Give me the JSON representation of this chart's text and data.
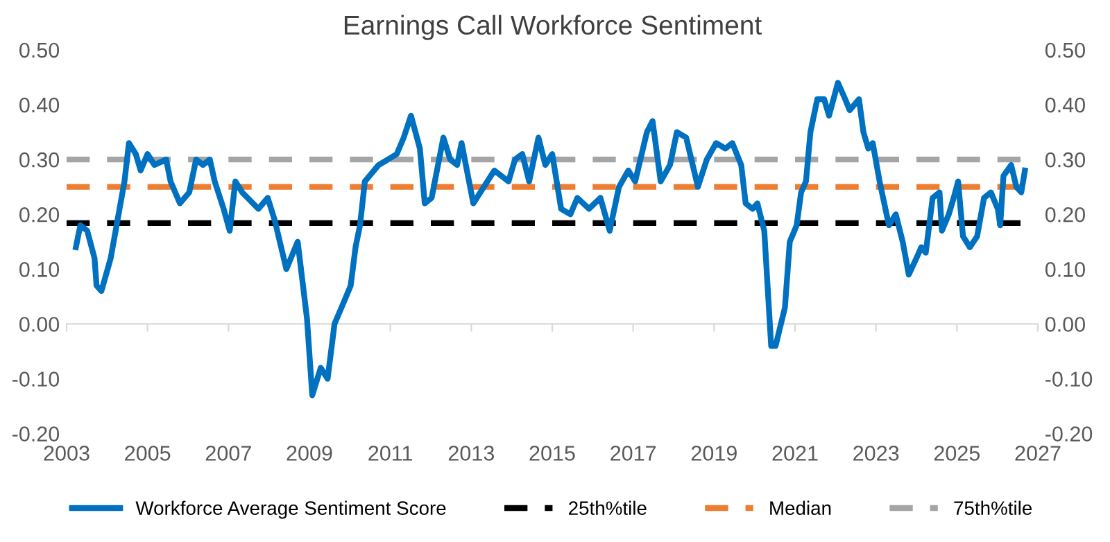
{
  "chart_data": {
    "type": "line",
    "title": "Earnings Call Workforce Sentiment",
    "x": [
      2003.23,
      2003.34,
      2003.51,
      2003.69,
      2003.74,
      2003.86,
      2004.09,
      2004.43,
      2004.54,
      2004.71,
      2004.83,
      2005.0,
      2005.17,
      2005.46,
      2005.57,
      2005.8,
      2006.03,
      2006.2,
      2006.37,
      2006.54,
      2006.66,
      2006.88,
      2007.03,
      2007.17,
      2007.34,
      2007.74,
      2007.97,
      2008.14,
      2008.43,
      2008.71,
      2008.94,
      2009.07,
      2009.28,
      2009.45,
      2009.62,
      2009.85,
      2010.02,
      2010.14,
      2010.25,
      2010.37,
      2010.71,
      2010.94,
      2011.16,
      2011.33,
      2011.51,
      2011.73,
      2011.85,
      2012.02,
      2012.31,
      2012.48,
      2012.65,
      2012.76,
      2013.05,
      2013.57,
      2013.92,
      2014.08,
      2014.26,
      2014.43,
      2014.66,
      2014.83,
      2015.0,
      2015.22,
      2015.45,
      2015.62,
      2015.91,
      2016.19,
      2016.42,
      2016.65,
      2016.88,
      2017.05,
      2017.34,
      2017.48,
      2017.68,
      2017.91,
      2018.08,
      2018.31,
      2018.6,
      2018.82,
      2019.05,
      2019.28,
      2019.45,
      2019.67,
      2019.78,
      2019.95,
      2020.07,
      2020.24,
      2020.41,
      2020.52,
      2020.75,
      2020.87,
      2021.04,
      2021.15,
      2021.27,
      2021.38,
      2021.55,
      2021.72,
      2021.84,
      2022.06,
      2022.24,
      2022.35,
      2022.58,
      2022.69,
      2022.81,
      2022.92,
      2023.09,
      2023.32,
      2023.49,
      2023.66,
      2023.81,
      2024.0,
      2024.12,
      2024.23,
      2024.4,
      2024.57,
      2024.63,
      2024.8,
      2024.92,
      2025.03,
      2025.15,
      2025.32,
      2025.5,
      2025.67,
      2025.84,
      2026.01,
      2026.07,
      2026.15,
      2026.34,
      2026.47,
      2026.59,
      2026.68
    ],
    "series": [
      {
        "name": "Workforce Average Sentiment Score",
        "color": "#0070c0",
        "values": [
          0.14,
          0.18,
          0.17,
          0.12,
          0.07,
          0.06,
          0.12,
          0.26,
          0.33,
          0.31,
          0.28,
          0.31,
          0.29,
          0.3,
          0.26,
          0.22,
          0.24,
          0.3,
          0.29,
          0.3,
          0.26,
          0.21,
          0.17,
          0.26,
          0.24,
          0.21,
          0.23,
          0.19,
          0.1,
          0.15,
          0.01,
          -0.13,
          -0.08,
          -0.1,
          0.0,
          0.04,
          0.07,
          0.14,
          0.18,
          0.26,
          0.29,
          0.3,
          0.31,
          0.34,
          0.38,
          0.32,
          0.22,
          0.23,
          0.34,
          0.3,
          0.29,
          0.33,
          0.22,
          0.28,
          0.26,
          0.3,
          0.31,
          0.26,
          0.34,
          0.29,
          0.31,
          0.21,
          0.2,
          0.23,
          0.21,
          0.23,
          0.17,
          0.25,
          0.28,
          0.26,
          0.35,
          0.37,
          0.26,
          0.29,
          0.35,
          0.34,
          0.25,
          0.3,
          0.33,
          0.32,
          0.33,
          0.29,
          0.22,
          0.21,
          0.22,
          0.17,
          -0.04,
          -0.04,
          0.03,
          0.15,
          0.18,
          0.24,
          0.26,
          0.35,
          0.41,
          0.41,
          0.38,
          0.44,
          0.41,
          0.39,
          0.41,
          0.35,
          0.32,
          0.33,
          0.26,
          0.18,
          0.2,
          0.15,
          0.09,
          0.12,
          0.14,
          0.13,
          0.23,
          0.24,
          0.17,
          0.2,
          0.23,
          0.26,
          0.16,
          0.14,
          0.16,
          0.23,
          0.24,
          0.21,
          0.18,
          0.27,
          0.29,
          0.25,
          0.24,
          0.28
        ]
      }
    ],
    "ref_lines": [
      {
        "axis": "y",
        "value": 0.184,
        "label": "25th%tile",
        "color": "#000000",
        "line_style": "dashed"
      },
      {
        "axis": "y",
        "value": 0.25,
        "label": "Median",
        "color": "#ed7d31",
        "line_style": "dashed"
      },
      {
        "axis": "y",
        "value": 0.3,
        "label": "75th%tile",
        "color": "#a5a5a5",
        "line_style": "dashed"
      }
    ],
    "xlim": [
      2003,
      2027
    ],
    "xticks": [
      2003,
      2005,
      2007,
      2009,
      2011,
      2013,
      2015,
      2017,
      2019,
      2021,
      2023,
      2025,
      2027
    ],
    "ylim": [
      -0.2,
      0.5
    ],
    "yticks": [
      {
        "value": -0.2,
        "label": "-0.20"
      },
      {
        "value": -0.1,
        "label": "-0.10"
      },
      {
        "value": 0.0,
        "label": "0.00"
      },
      {
        "value": 0.1,
        "label": "0.10"
      },
      {
        "value": 0.2,
        "label": "0.20"
      },
      {
        "value": 0.3,
        "label": "0.30"
      },
      {
        "value": 0.4,
        "label": "0.40"
      },
      {
        "value": 0.5,
        "label": "0.50"
      }
    ],
    "y2lim": [
      -0.2,
      0.5
    ],
    "y2ticks": [
      {
        "value": -0.2,
        "label": "-0.20"
      },
      {
        "value": -0.1,
        "label": "-0.10"
      },
      {
        "value": 0.0,
        "label": "0.00"
      },
      {
        "value": 0.1,
        "label": "0.10"
      },
      {
        "value": 0.2,
        "label": "0.20"
      },
      {
        "value": 0.3,
        "label": "0.30"
      },
      {
        "value": 0.4,
        "label": "0.40"
      },
      {
        "value": 0.5,
        "label": "0.50"
      }
    ],
    "grid": false,
    "legend": "bottom",
    "marker": "none",
    "line_style": "solid"
  }
}
